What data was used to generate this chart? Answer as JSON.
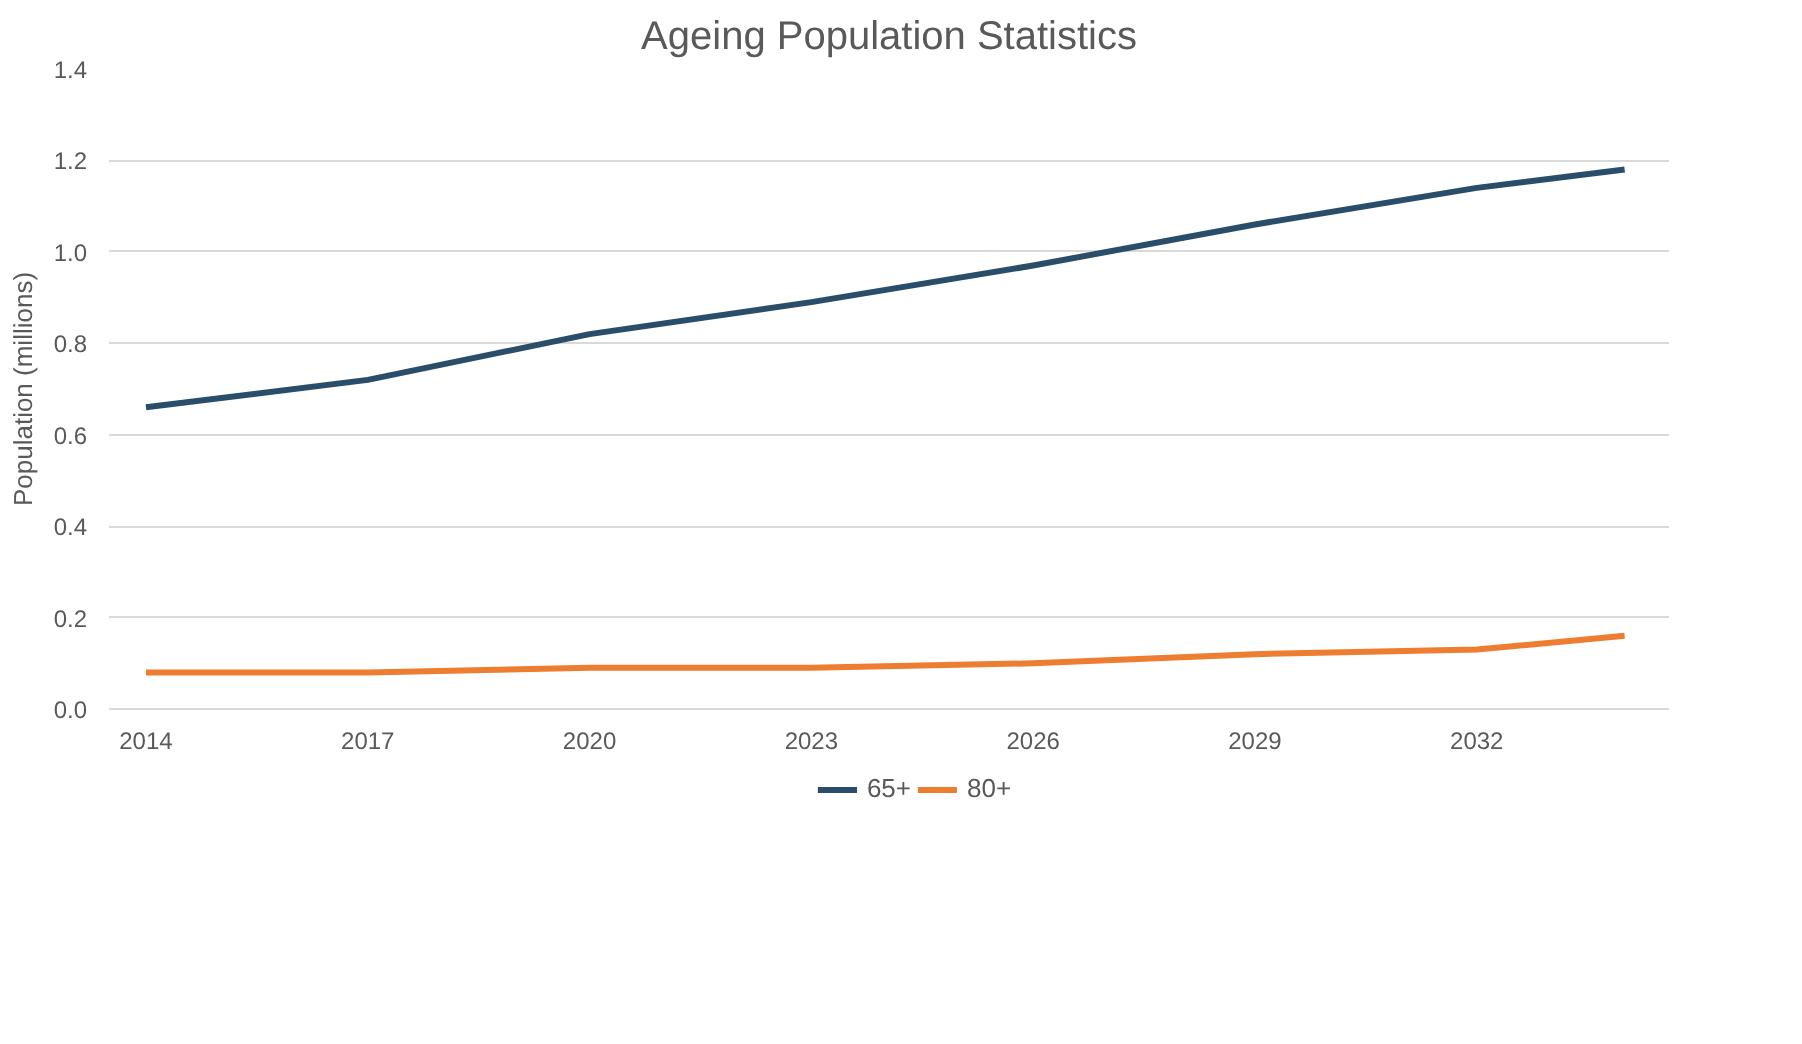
{
  "chart_data": {
    "type": "line",
    "title": "Ageing Population Statistics",
    "ylabel": "Population (millions)",
    "x": [
      2014,
      2017,
      2020,
      2023,
      2026,
      2029,
      2032,
      2034
    ],
    "xlim": [
      2013.5,
      2034.6
    ],
    "xticks": [
      2014,
      2017,
      2020,
      2023,
      2026,
      2029,
      2032
    ],
    "ylim": [
      0,
      1.4
    ],
    "yticks": [
      {
        "value": 0,
        "label": "0.0"
      },
      0.2,
      0.4,
      0.6,
      0.8,
      {
        "value": 1,
        "label": "1.0"
      },
      1.2,
      1.4
    ],
    "series": [
      {
        "name": "65+",
        "color": "#2a4d69",
        "values": [
          0.66,
          0.72,
          0.82,
          0.89,
          0.97,
          1.06,
          1.14,
          1.18
        ]
      },
      {
        "name": "80+",
        "color": "#ed7d31",
        "values": [
          0.08,
          0.08,
          0.09,
          0.09,
          0.1,
          0.12,
          0.13,
          0.16
        ]
      }
    ],
    "grid": "y",
    "legend": "bottom",
    "marker": "none",
    "line_style": "solid"
  }
}
